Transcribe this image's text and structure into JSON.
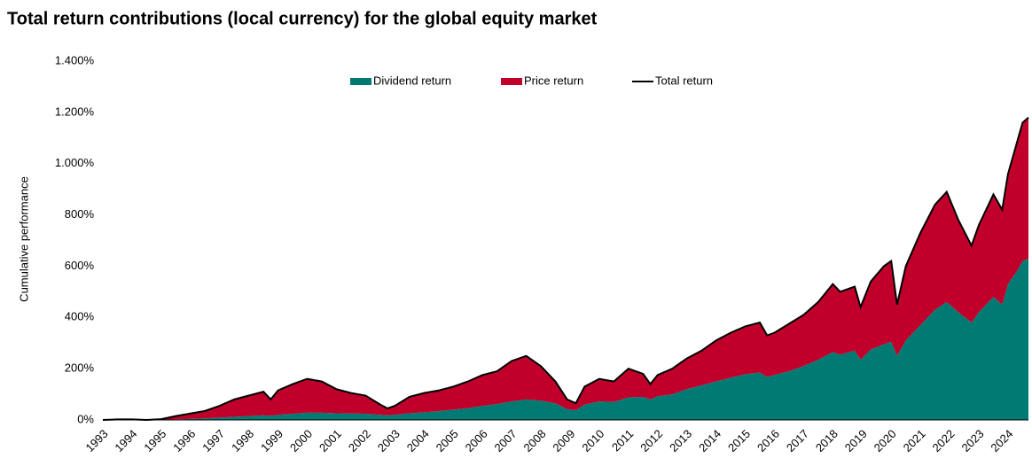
{
  "chart_data": {
    "type": "stacked_area_line",
    "title": "Total return contributions (local currency) for the global equity market",
    "y_label": "Cumulative performance",
    "x": [
      1993.0,
      1993.5,
      1994.0,
      1994.5,
      1995.0,
      1995.5,
      1996.0,
      1996.5,
      1997.0,
      1997.5,
      1998.0,
      1998.5,
      1998.75,
      1999.0,
      1999.5,
      2000.0,
      2000.5,
      2001.0,
      2001.5,
      2002.0,
      2002.5,
      2002.75,
      2003.0,
      2003.5,
      2004.0,
      2004.5,
      2005.0,
      2005.5,
      2006.0,
      2006.5,
      2007.0,
      2007.5,
      2008.0,
      2008.5,
      2008.9,
      2009.2,
      2009.5,
      2010.0,
      2010.5,
      2011.0,
      2011.5,
      2011.75,
      2012.0,
      2012.5,
      2013.0,
      2013.5,
      2014.0,
      2014.5,
      2015.0,
      2015.5,
      2015.75,
      2016.0,
      2016.5,
      2017.0,
      2017.5,
      2018.0,
      2018.25,
      2018.75,
      2018.95,
      2019.3,
      2019.75,
      2020.0,
      2020.2,
      2020.5,
      2021.0,
      2021.5,
      2021.9,
      2022.3,
      2022.75,
      2023.0,
      2023.5,
      2023.8,
      2024.0,
      2024.3,
      2024.5,
      2024.7
    ],
    "series": [
      {
        "name": "Dividend return",
        "color": "#007a73",
        "kind": "area",
        "values": [
          0,
          0,
          0,
          0,
          1,
          2,
          4,
          6,
          9,
          12,
          15,
          18,
          16,
          20,
          24,
          28,
          28,
          26,
          25,
          24,
          20,
          18,
          20,
          26,
          30,
          34,
          40,
          46,
          55,
          62,
          72,
          80,
          75,
          65,
          42,
          38,
          60,
          72,
          70,
          88,
          90,
          80,
          92,
          100,
          120,
          135,
          150,
          165,
          178,
          185,
          168,
          175,
          190,
          210,
          235,
          265,
          255,
          270,
          235,
          275,
          295,
          305,
          250,
          310,
          370,
          430,
          460,
          420,
          380,
          420,
          480,
          450,
          530,
          580,
          620,
          630
        ]
      },
      {
        "name": "Price return",
        "color": "#c0002a",
        "kind": "area",
        "values": [
          0,
          2,
          2,
          0,
          2,
          13,
          21,
          29,
          46,
          68,
          80,
          92,
          64,
          95,
          116,
          132,
          122,
          94,
          80,
          71,
          40,
          27,
          35,
          64,
          75,
          81,
          90,
          104,
          120,
          128,
          158,
          170,
          135,
          85,
          38,
          27,
          70,
          88,
          80,
          112,
          90,
          60,
          83,
          100,
          120,
          135,
          160,
          175,
          187,
          195,
          162,
          165,
          185,
          200,
          225,
          265,
          245,
          250,
          205,
          265,
          305,
          315,
          200,
          290,
          360,
          410,
          430,
          360,
          300,
          340,
          400,
          370,
          430,
          500,
          540,
          550
        ]
      },
      {
        "name": "Total return",
        "color": "#000000",
        "kind": "line",
        "values": [
          0,
          2,
          2,
          0,
          3,
          15,
          25,
          35,
          55,
          80,
          95,
          110,
          80,
          115,
          140,
          160,
          150,
          120,
          105,
          95,
          60,
          45,
          55,
          90,
          105,
          115,
          130,
          150,
          175,
          190,
          230,
          250,
          210,
          150,
          80,
          65,
          130,
          160,
          150,
          200,
          180,
          140,
          175,
          200,
          240,
          270,
          310,
          340,
          365,
          380,
          330,
          340,
          375,
          410,
          460,
          530,
          500,
          520,
          440,
          540,
          600,
          620,
          450,
          600,
          730,
          840,
          890,
          780,
          680,
          760,
          880,
          820,
          960,
          1080,
          1160,
          1180
        ]
      }
    ],
    "xlim": [
      1993,
      2024.7
    ],
    "xticks": [
      1993,
      1994,
      1995,
      1996,
      1997,
      1998,
      1999,
      2000,
      2001,
      2002,
      2003,
      2004,
      2005,
      2006,
      2007,
      2008,
      2009,
      2010,
      2011,
      2012,
      2013,
      2014,
      2015,
      2016,
      2017,
      2018,
      2019,
      2020,
      2021,
      2022,
      2023,
      2024
    ],
    "ylim": [
      0,
      1400
    ],
    "yticks": [
      {
        "value": 0,
        "label": "0%"
      },
      {
        "value": 200,
        "label": "200%"
      },
      {
        "value": 400,
        "label": "400%"
      },
      {
        "value": 600,
        "label": "600%"
      },
      {
        "value": 800,
        "label": "800%"
      },
      {
        "value": 1000,
        "label": "1.000%"
      },
      {
        "value": 1200,
        "label": "1.200%"
      },
      {
        "value": 1400,
        "label": "1.400%"
      }
    ]
  }
}
